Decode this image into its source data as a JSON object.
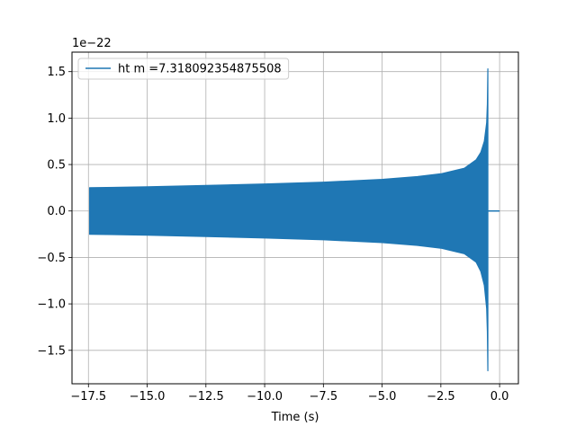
{
  "chart_data": {
    "type": "line",
    "title": "",
    "xlabel": "Time (s)",
    "ylabel": "",
    "y_offset_label": "1e−22",
    "xlim": [
      -18.2,
      0.8
    ],
    "ylim": [
      -1.86,
      1.71
    ],
    "x_ticks": [
      -17.5,
      -15.0,
      -12.5,
      -10.0,
      -7.5,
      -5.0,
      -2.5,
      0.0
    ],
    "x_tick_labels": [
      "−17.5",
      "−15.0",
      "−12.5",
      "−10.0",
      "−7.5",
      "−5.0",
      "−2.5",
      "0.0"
    ],
    "y_ticks": [
      -1.5,
      -1.0,
      -0.5,
      0.0,
      0.5,
      1.0,
      1.5
    ],
    "y_tick_labels": [
      "−1.5",
      "−1.0",
      "−0.5",
      "0.0",
      "0.5",
      "1.0",
      "1.5"
    ],
    "grid": true,
    "legend_position": "top-left",
    "series": [
      {
        "name": "ht m =7.318092354875508",
        "color": "#1f77b4",
        "envelope": {
          "x": [
            -17.45,
            -15.0,
            -12.5,
            -10.0,
            -7.5,
            -5.0,
            -3.5,
            -2.5,
            -1.5,
            -1.0,
            -0.8,
            -0.65,
            -0.55,
            -0.52,
            -0.5
          ],
          "upper": [
            0.25,
            0.26,
            0.275,
            0.29,
            0.31,
            0.34,
            0.37,
            0.4,
            0.46,
            0.55,
            0.63,
            0.75,
            0.95,
            1.15,
            1.53
          ],
          "lower": [
            -0.25,
            -0.26,
            -0.275,
            -0.29,
            -0.31,
            -0.34,
            -0.37,
            -0.4,
            -0.46,
            -0.55,
            -0.65,
            -0.8,
            -1.05,
            -1.3,
            -1.72
          ]
        },
        "ringdown_end_x": 0.0
      }
    ]
  }
}
